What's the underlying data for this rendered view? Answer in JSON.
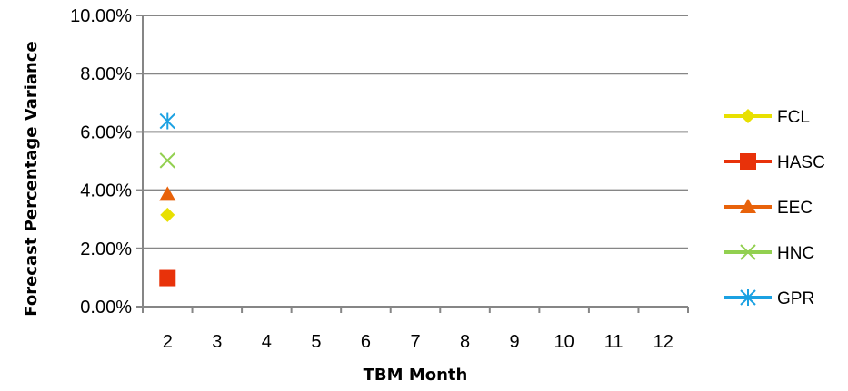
{
  "chart_data": {
    "type": "scatter",
    "title": "",
    "xlabel": "TBM Month",
    "ylabel": "Forecast Percentage Variance",
    "x_categories": [
      "2",
      "3",
      "4",
      "5",
      "6",
      "7",
      "8",
      "9",
      "10",
      "11",
      "12"
    ],
    "ylim": [
      0,
      0.1
    ],
    "y_ticks": [
      0.0,
      0.02,
      0.04,
      0.06,
      0.08,
      0.1
    ],
    "y_tick_labels": [
      "0.00%",
      "2.00%",
      "4.00%",
      "6.00%",
      "8.00%",
      "10.00%"
    ],
    "grid": "horizontal",
    "legend_position": "right",
    "series": [
      {
        "name": "FCL",
        "color": "#E8E000",
        "marker": "diamond",
        "x": [
          "2"
        ],
        "y": [
          0.0315
        ]
      },
      {
        "name": "HASC",
        "color": "#E8320A",
        "marker": "square",
        "x": [
          "2"
        ],
        "y": [
          0.0098
        ]
      },
      {
        "name": "EEC",
        "color": "#E8620A",
        "marker": "triangle",
        "x": [
          "2"
        ],
        "y": [
          0.0385
        ]
      },
      {
        "name": "HNC",
        "color": "#92D050",
        "marker": "x",
        "x": [
          "2"
        ],
        "y": [
          0.0502
        ]
      },
      {
        "name": "GPR",
        "color": "#1BA1E2",
        "marker": "asterisk",
        "x": [
          "2"
        ],
        "y": [
          0.0637
        ]
      }
    ]
  }
}
